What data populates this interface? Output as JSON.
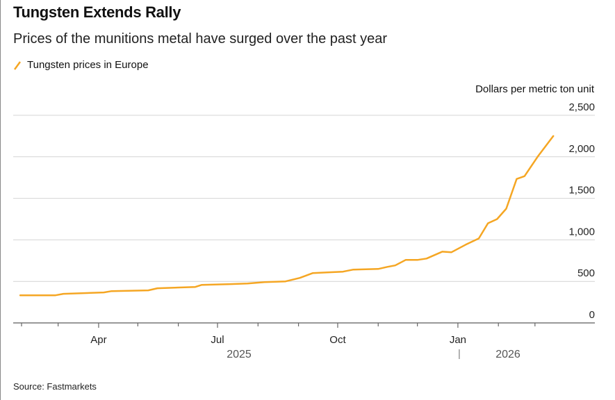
{
  "chart_data": {
    "type": "line",
    "title": "Tungsten Extends Rally",
    "subtitle": "Prices of the munitions metal have surged over the past year",
    "ylabel": "Dollars per metric ton unit",
    "source": "Source: Fastmarkets",
    "ylim": [
      0,
      2500
    ],
    "yticks": [
      0,
      500,
      1000,
      1500,
      2000,
      2500
    ],
    "ytick_labels": [
      "0",
      "500",
      "1,000",
      "1,500",
      "2,000",
      "2,500"
    ],
    "xticks": [
      "2025-02-01",
      "2025-03-01",
      "2025-04-01",
      "2025-05-01",
      "2025-06-01",
      "2025-07-01",
      "2025-08-01",
      "2025-09-01",
      "2025-10-01",
      "2025-11-01",
      "2025-12-01",
      "2026-01-01",
      "2026-02-01",
      "2026-03-01"
    ],
    "xtick_labels": [
      {
        "date": "2025-04-01",
        "label": "Apr"
      },
      {
        "date": "2025-07-01",
        "label": "Jul"
      },
      {
        "date": "2025-10-01",
        "label": "Oct"
      },
      {
        "date": "2026-01-01",
        "label": "Jan"
      }
    ],
    "year_labels": [
      "2025",
      "2026"
    ],
    "grid": true,
    "legend": "top-left",
    "color": "#f5a623",
    "series": [
      {
        "name": "Tungsten prices in Europe",
        "points": [
          [
            "2025-01-31",
            333
          ],
          [
            "2025-02-27",
            333
          ],
          [
            "2025-03-05",
            350
          ],
          [
            "2025-04-05",
            367
          ],
          [
            "2025-04-11",
            383
          ],
          [
            "2025-05-09",
            392
          ],
          [
            "2025-05-16",
            417
          ],
          [
            "2025-06-14",
            433
          ],
          [
            "2025-06-19",
            458
          ],
          [
            "2025-07-11",
            467
          ],
          [
            "2025-07-24",
            475
          ],
          [
            "2025-08-06",
            492
          ],
          [
            "2025-08-22",
            500
          ],
          [
            "2025-09-02",
            542
          ],
          [
            "2025-09-12",
            600
          ],
          [
            "2025-09-23",
            608
          ],
          [
            "2025-10-05",
            617
          ],
          [
            "2025-10-13",
            642
          ],
          [
            "2025-11-01",
            650
          ],
          [
            "2025-11-08",
            675
          ],
          [
            "2025-11-14",
            692
          ],
          [
            "2025-11-22",
            758
          ],
          [
            "2025-12-01",
            758
          ],
          [
            "2025-12-08",
            775
          ],
          [
            "2025-12-20",
            858
          ],
          [
            "2025-12-27",
            850
          ],
          [
            "2026-01-07",
            942
          ],
          [
            "2026-01-17",
            1017
          ],
          [
            "2026-01-24",
            1200
          ],
          [
            "2026-01-31",
            1250
          ],
          [
            "2026-02-07",
            1375
          ],
          [
            "2026-02-15",
            1733
          ],
          [
            "2026-02-21",
            1767
          ],
          [
            "2026-03-03",
            2000
          ],
          [
            "2026-03-15",
            2250
          ]
        ]
      }
    ]
  }
}
